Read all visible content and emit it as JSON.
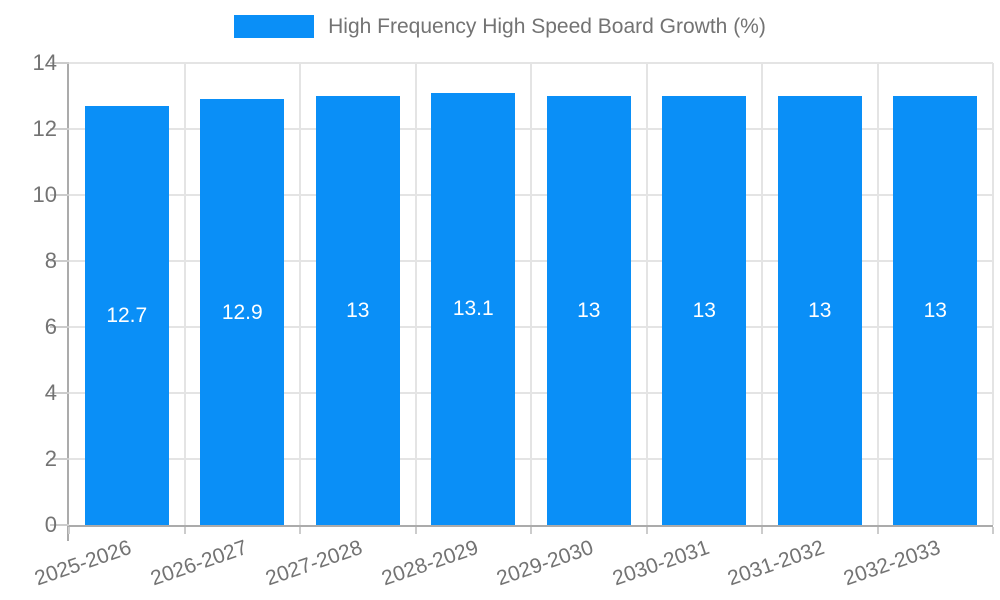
{
  "legend": {
    "label": "High Frequency High Speed Board Growth (%)",
    "swatch_color": "#0A8FF7"
  },
  "chart_data": {
    "type": "bar",
    "title": "High Frequency High Speed Board Growth (%)",
    "categories": [
      "2025-2026",
      "2026-2027",
      "2027-2028",
      "2028-2029",
      "2029-2030",
      "2030-2031",
      "2031-2032",
      "2032-2033"
    ],
    "values": [
      12.7,
      12.9,
      13,
      13.1,
      13,
      13,
      13,
      13
    ],
    "value_labels": [
      "12.7",
      "12.9",
      "13",
      "13.1",
      "13",
      "13",
      "13",
      "13"
    ],
    "xlabel": "",
    "ylabel": "",
    "ylim": [
      0,
      14
    ],
    "yticks": [
      0,
      2,
      4,
      6,
      8,
      10,
      12,
      14
    ],
    "grid": "on",
    "legend_position": "top",
    "bar_color": "#0A8FF7",
    "bar_label_color": "#ffffff"
  },
  "colors": {
    "axis_line": "#ababab",
    "gridline": "#e4e4e4",
    "tick": "#cccccc",
    "axis_text": "#737373"
  }
}
